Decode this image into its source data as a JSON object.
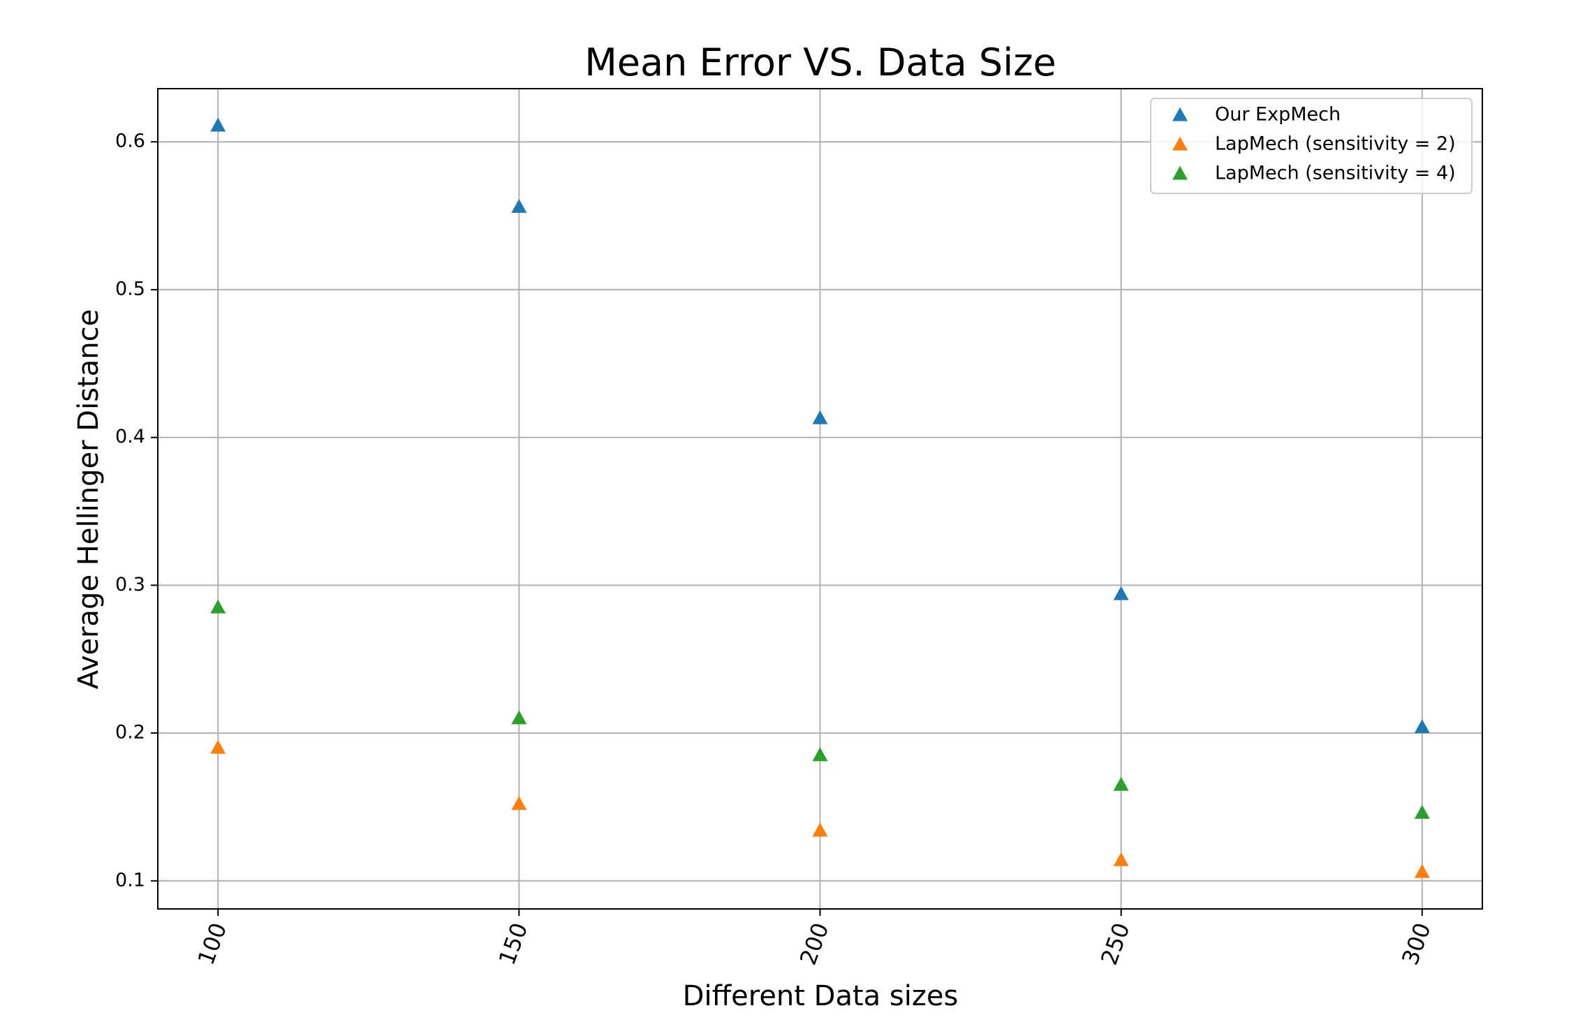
{
  "chart_data": {
    "type": "scatter",
    "title": "Mean Error VS. Data Size",
    "xlabel": "Different Data sizes",
    "ylabel": "Average Hellinger Distance",
    "x": [
      100,
      150,
      200,
      250,
      300
    ],
    "xlim": [
      90,
      310
    ],
    "ylim": [
      0.081,
      0.636
    ],
    "xticks": [
      100,
      150,
      200,
      250,
      300
    ],
    "yticks": [
      0.1,
      0.2,
      0.3,
      0.4,
      0.5,
      0.6
    ],
    "ytick_labels": [
      "0.1",
      "0.2",
      "0.3",
      "0.4",
      "0.5",
      "0.6"
    ],
    "grid": true,
    "legend_position": "top-right",
    "marker": "triangle-up",
    "series": [
      {
        "name": "Our ExpMech",
        "color": "#1f77b4",
        "values": [
          0.611,
          0.556,
          0.413,
          0.294,
          0.204
        ]
      },
      {
        "name": "LapMech (sensitivity = 2)",
        "color": "#ff7f0e",
        "values": [
          0.19,
          0.152,
          0.134,
          0.114,
          0.106
        ]
      },
      {
        "name": "LapMech (sensitivity = 4)",
        "color": "#2ca02c",
        "values": [
          0.285,
          0.21,
          0.185,
          0.165,
          0.146
        ]
      }
    ]
  }
}
